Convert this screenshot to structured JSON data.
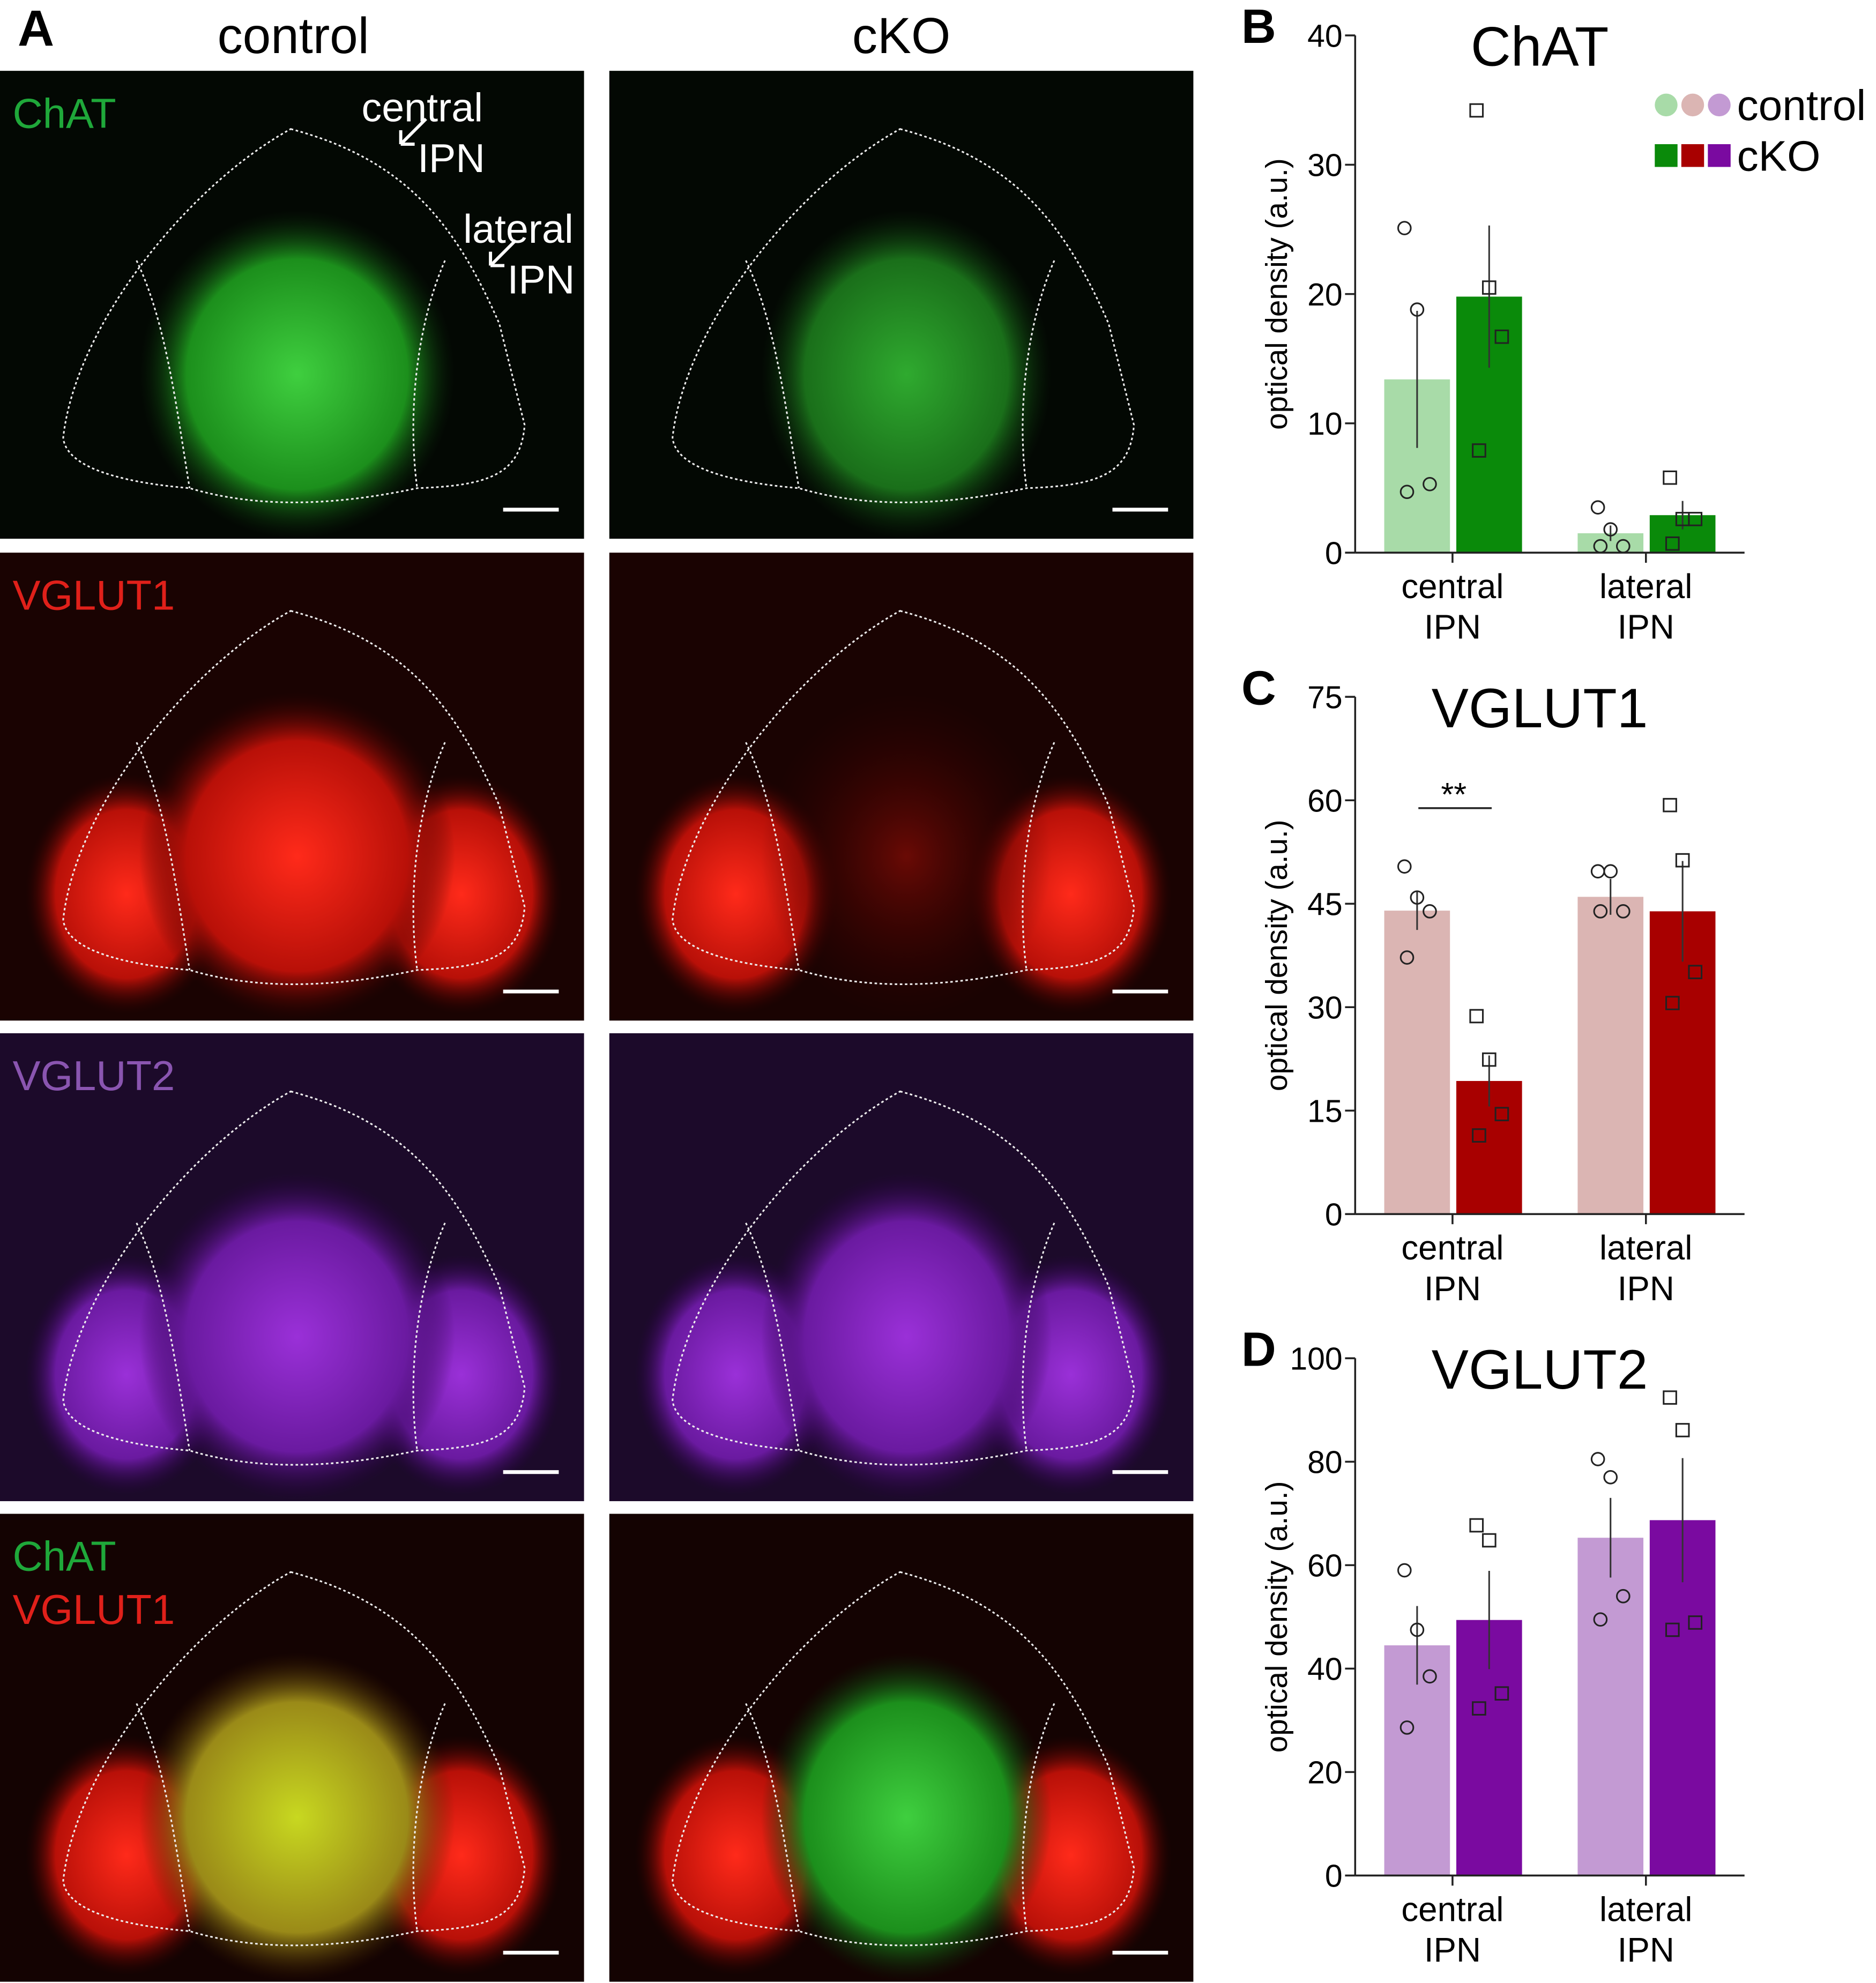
{
  "micrographs": {
    "panel": "A",
    "columns": [
      "control",
      "cKO"
    ],
    "rows": [
      {
        "labels": [
          "ChAT"
        ],
        "colors": [
          "#1fa83a"
        ]
      },
      {
        "labels": [
          "VGLUT1"
        ],
        "colors": [
          "#e0201a"
        ]
      },
      {
        "labels": [
          "VGLUT2"
        ],
        "colors": [
          "#8a55b0"
        ]
      },
      {
        "labels": [
          "ChAT",
          "VGLUT1"
        ],
        "colors": [
          "#1fa83a",
          "#e0201a"
        ]
      }
    ],
    "callouts": [
      [
        "central",
        "IPN"
      ],
      [
        "lateral",
        "IPN"
      ]
    ]
  },
  "chart_data": [
    {
      "type": "bar",
      "panel": "B",
      "title": "ChAT",
      "ylabel": "optical density (a.u.)",
      "categories": [
        "central IPN",
        "lateral IPN"
      ],
      "ylim": [
        0,
        40
      ],
      "yticks": [
        0,
        10,
        20,
        30,
        40
      ],
      "series": [
        {
          "name": "control",
          "color": "#a8dba8",
          "marker": "circle",
          "values": [
            13.4,
            1.5
          ],
          "errors": [
            5.3,
            0.6
          ],
          "points": [
            [
              25.1,
              18.8,
              5.3,
              4.7
            ],
            [
              3.5,
              1.8,
              0.5,
              0.5
            ]
          ]
        },
        {
          "name": "cKO",
          "color": "#0a8a0a",
          "marker": "square",
          "values": [
            19.8,
            2.9
          ],
          "errors": [
            5.5,
            1.1
          ],
          "points": [
            [
              34.2,
              20.5,
              16.7,
              7.9
            ],
            [
              5.8,
              2.6,
              2.6,
              0.7
            ]
          ]
        }
      ]
    },
    {
      "type": "bar",
      "panel": "C",
      "title": "VGLUT1",
      "ylabel": "optical density (a.u.)",
      "categories": [
        "central IPN",
        "lateral IPN"
      ],
      "ylim": [
        0,
        75
      ],
      "yticks": [
        0,
        15,
        30,
        45,
        60,
        75
      ],
      "annotation": "**",
      "series": [
        {
          "name": "control",
          "color": "#dbb5b3",
          "marker": "circle",
          "values": [
            44.0,
            46.0
          ],
          "errors": [
            2.8,
            2.6
          ],
          "points": [
            [
              50.4,
              45.9,
              43.9,
              37.2
            ],
            [
              49.7,
              49.7,
              43.9,
              43.9
            ]
          ]
        },
        {
          "name": "cKO",
          "color": "#a80000",
          "marker": "square",
          "values": [
            19.3,
            43.9
          ],
          "errors": [
            3.7,
            7.3
          ],
          "points": [
            [
              28.7,
              22.4,
              14.5,
              11.4
            ],
            [
              59.3,
              51.3,
              35.1,
              30.6
            ]
          ]
        }
      ]
    },
    {
      "type": "bar",
      "panel": "D",
      "title": "VGLUT2",
      "ylabel": "optical density (a.u.)",
      "categories": [
        "central IPN",
        "lateral IPN"
      ],
      "ylim": [
        0,
        100
      ],
      "yticks": [
        0,
        20,
        40,
        60,
        80,
        100
      ],
      "series": [
        {
          "name": "control",
          "color": "#c39ad3",
          "marker": "circle",
          "values": [
            44.5,
            65.3
          ],
          "errors": [
            7.6,
            7.7
          ],
          "points": [
            [
              59.0,
              47.5,
              38.5,
              28.6
            ],
            [
              80.5,
              77.0,
              54.0,
              49.5
            ]
          ]
        },
        {
          "name": "cKO",
          "color": "#7a0aa0",
          "marker": "square",
          "values": [
            49.4,
            68.7
          ],
          "errors": [
            9.5,
            12.0
          ],
          "points": [
            [
              67.7,
              64.8,
              35.2,
              32.3
            ],
            [
              92.4,
              86.1,
              48.9,
              47.5
            ]
          ]
        }
      ]
    }
  ]
}
